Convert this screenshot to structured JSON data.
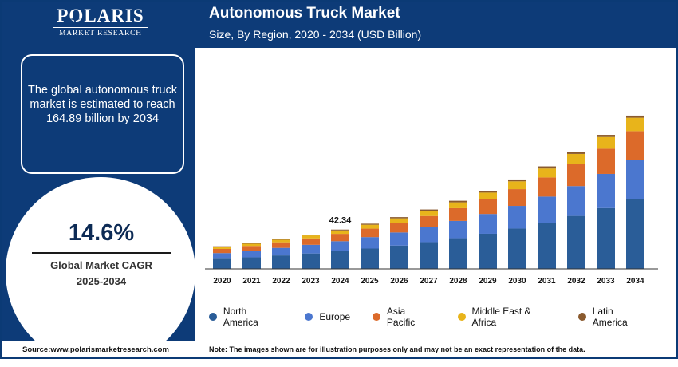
{
  "brand": {
    "name": "POLARIS",
    "subtitle": "MARKET RESEARCH"
  },
  "info_box": {
    "text": "The global autonomous truck market is estimated to reach 164.89 billion by 2034"
  },
  "cagr": {
    "value": "14.6%",
    "label_line1": "Global Market CAGR",
    "label_line2": "2025-2034"
  },
  "footer": {
    "source": "Source:www.polarismarketresearch.com",
    "note": "Note: The images shown are for illustration purposes only and may not be an exact representation of the data."
  },
  "colors": {
    "panel": "#0d3b78",
    "north_america": "#2a5d98",
    "europe": "#4b77cf",
    "asia_pacific": "#dc6a2a",
    "middle_east_africa": "#e8b41b",
    "latin_america": "#8a5a2e"
  },
  "chart_data": {
    "type": "bar",
    "stacked": true,
    "title": "Autonomous Truck Market",
    "subtitle": "Size, By Region, 2020 - 2034 (USD Billion)",
    "xlabel": "",
    "ylabel": "",
    "grid": false,
    "legend_position": "bottom",
    "categories": [
      "2020",
      "2021",
      "2022",
      "2023",
      "2024",
      "2025",
      "2026",
      "2027",
      "2028",
      "2029",
      "2030",
      "2031",
      "2032",
      "2033",
      "2034"
    ],
    "series": [
      {
        "name": "North America",
        "color": "#2a5d98",
        "values": [
          10.9,
          12.5,
          14.5,
          16.6,
          19.1,
          21.9,
          25.1,
          28.8,
          33.0,
          37.8,
          43.4,
          49.8,
          57.0,
          65.4,
          75.0
        ]
      },
      {
        "name": "Europe",
        "color": "#4b77cf",
        "values": [
          6.1,
          7.0,
          8.1,
          9.3,
          10.7,
          12.3,
          14.1,
          16.2,
          18.6,
          21.3,
          24.4,
          28.0,
          32.1,
          36.8,
          42.2
        ]
      },
      {
        "name": "Asia Pacific",
        "color": "#dc6a2a",
        "values": [
          4.5,
          5.2,
          6.0,
          6.9,
          7.9,
          9.1,
          10.4,
          11.9,
          13.7,
          15.7,
          18.0,
          20.6,
          23.6,
          27.1,
          31.0
        ]
      },
      {
        "name": "Middle East & Africa",
        "color": "#e8b41b",
        "values": [
          2.1,
          2.4,
          2.8,
          3.2,
          3.7,
          4.2,
          4.8,
          5.5,
          6.3,
          7.3,
          8.4,
          9.6,
          11.0,
          12.6,
          14.4
        ]
      },
      {
        "name": "Latin America",
        "color": "#8a5a2e",
        "values": [
          0.7,
          0.8,
          0.9,
          0.9,
          0.9,
          1.1,
          1.3,
          1.5,
          1.7,
          1.8,
          2.0,
          2.3,
          2.4,
          2.3,
          2.3
        ]
      }
    ],
    "data_labels": [
      {
        "category": "2024",
        "text": "42.34"
      }
    ],
    "ylim": [
      0,
      170
    ]
  }
}
